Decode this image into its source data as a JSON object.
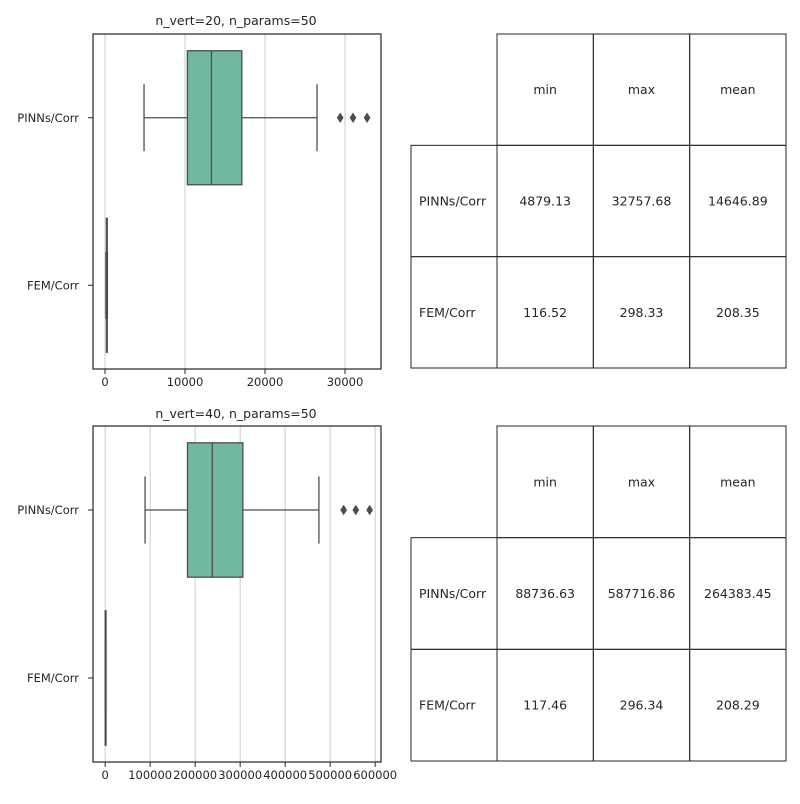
{
  "chart_data": [
    {
      "type": "box",
      "title": "n_vert=20, n_params=50",
      "categories": [
        "PINNs/Corr",
        "FEM/Corr"
      ],
      "xlim": [
        -1500,
        34500
      ],
      "xticks": [
        0,
        10000,
        20000,
        30000
      ],
      "xtick_labels": [
        "0",
        "10000",
        "20000",
        "30000"
      ],
      "grid": "x",
      "box_color": "#72b8a1",
      "boxes": [
        {
          "q1": 10300,
          "median": 13300,
          "q3": 17100,
          "whisker_low": 4879.13,
          "whisker_high": 26500,
          "outliers": [
            29400,
            31000,
            32757.68
          ]
        },
        {
          "q1": 180,
          "median": 208,
          "q3": 240,
          "whisker_low": 116.52,
          "whisker_high": 298.33,
          "outliers": []
        }
      ]
    },
    {
      "type": "box",
      "title": "n_vert=40, n_params=50",
      "categories": [
        "PINNs/Corr",
        "FEM/Corr"
      ],
      "xlim": [
        -27000,
        613000
      ],
      "xticks": [
        0,
        100000,
        200000,
        300000,
        400000,
        500000,
        600000
      ],
      "xtick_labels": [
        "0",
        "100000",
        "200000",
        "300000",
        "400000",
        "500000",
        "600000"
      ],
      "grid": "x",
      "box_color": "#72b8a1",
      "boxes": [
        {
          "q1": 183000,
          "median": 238000,
          "q3": 306000,
          "whisker_low": 88736.63,
          "whisker_high": 475000,
          "outliers": [
            530000,
            557000,
            587716.86
          ]
        },
        {
          "q1": 180,
          "median": 208,
          "q3": 240,
          "whisker_low": 117.46,
          "whisker_high": 296.34,
          "outliers": []
        }
      ]
    }
  ],
  "tables": [
    {
      "columns": [
        "min",
        "max",
        "mean"
      ],
      "rows": [
        {
          "label": "PINNs/Corr",
          "values": [
            "4879.13",
            "32757.68",
            "14646.89"
          ]
        },
        {
          "label": "FEM/Corr",
          "values": [
            "116.52",
            "298.33",
            "208.35"
          ]
        }
      ]
    },
    {
      "columns": [
        "min",
        "max",
        "mean"
      ],
      "rows": [
        {
          "label": "PINNs/Corr",
          "values": [
            "88736.63",
            "587716.86",
            "264383.45"
          ]
        },
        {
          "label": "FEM/Corr",
          "values": [
            "117.46",
            "296.34",
            "208.29"
          ]
        }
      ]
    }
  ]
}
